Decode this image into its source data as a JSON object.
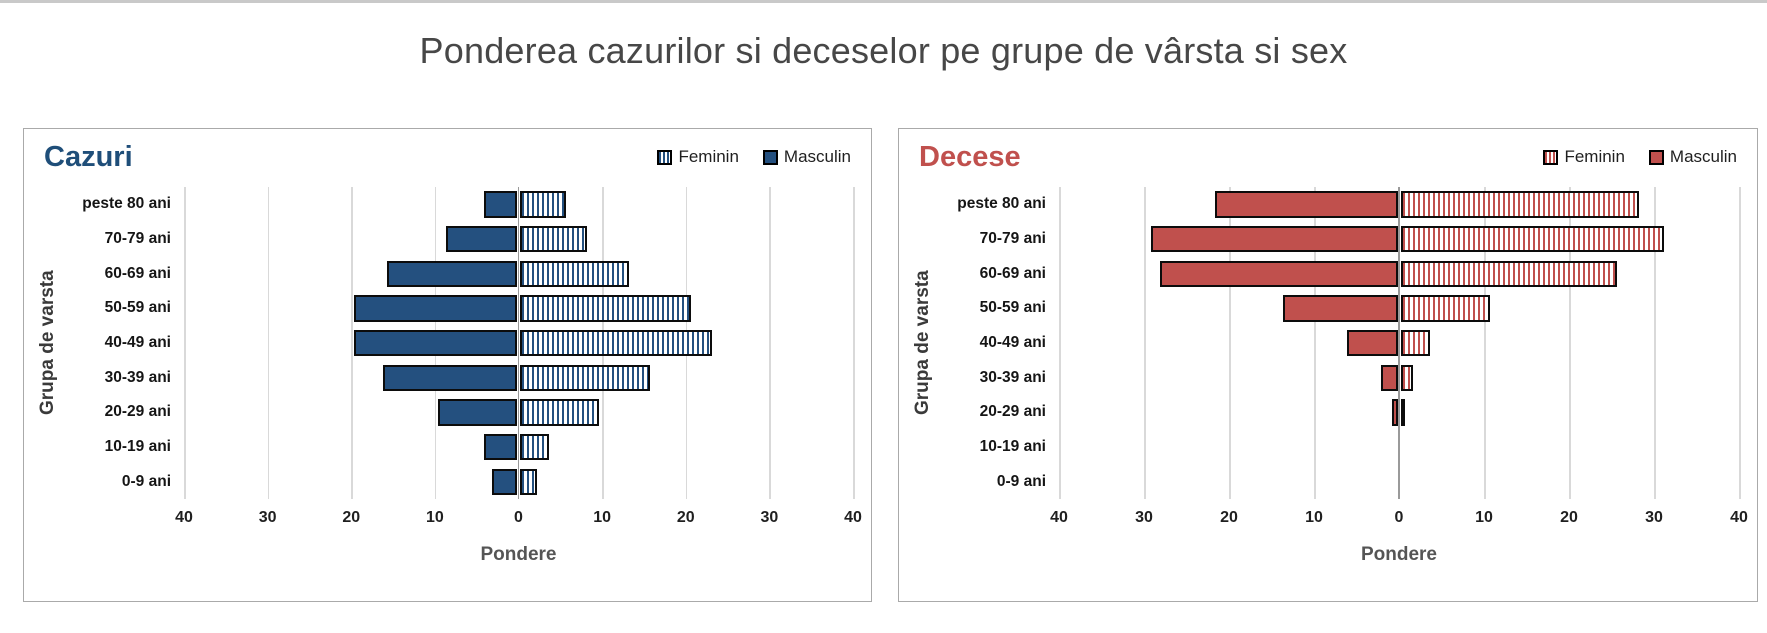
{
  "page": {
    "title": "Ponderea cazurilor si deceselor pe grupe de vârsta si sex"
  },
  "colors": {
    "cases_bar": "#24507F",
    "cases_title": "#1F4E79",
    "deaths_bar": "#C0504D",
    "deaths_title": "#C0504D",
    "gridline": "#D9D9D9",
    "center_axis": "#9A9A9A",
    "bar_outline": "#0C0C0C",
    "panel_border": "#AAAAAA"
  },
  "chart_data": [
    {
      "type": "bar",
      "subtype": "population-pyramid",
      "title": "Cazuri",
      "title_color": "#1F4E79",
      "color": "#24507F",
      "xlabel": "Pondere",
      "ylabel": "Grupa de varsta",
      "categories": [
        "peste 80 ani",
        "70-79 ani",
        "60-69 ani",
        "50-59 ani",
        "40-49 ani",
        "30-39 ani",
        "20-29 ani",
        "10-19 ani",
        "0-9 ani"
      ],
      "series": [
        {
          "name": "Masculin",
          "side": "left",
          "style": "solid",
          "values": [
            4,
            8.5,
            15.5,
            19.5,
            19.5,
            16,
            9.5,
            4,
            3
          ]
        },
        {
          "name": "Feminin",
          "side": "right",
          "style": "striped",
          "values": [
            5.5,
            8,
            13,
            20.5,
            23,
            15.5,
            9.5,
            3.5,
            2
          ]
        }
      ],
      "legend": [
        "Feminin",
        "Masculin"
      ],
      "legend_position": "top-right",
      "xlim": [
        -40,
        40
      ],
      "x_tick_labels": [
        "40",
        "30",
        "20",
        "10",
        "0",
        "10",
        "20",
        "30",
        "40"
      ],
      "grid": "vertical-only"
    },
    {
      "type": "bar",
      "subtype": "population-pyramid",
      "title": "Decese",
      "title_color": "#C0504D",
      "color": "#C0504D",
      "xlabel": "Pondere",
      "ylabel": "Grupa de varsta",
      "categories": [
        "peste 80 ani",
        "70-79 ani",
        "60-69 ani",
        "50-59 ani",
        "40-49 ani",
        "30-39 ani",
        "20-29 ani",
        "10-19 ani",
        "0-9 ani"
      ],
      "series": [
        {
          "name": "Masculin",
          "side": "left",
          "style": "solid",
          "values": [
            21.5,
            29,
            28,
            13.5,
            6,
            2,
            0.6,
            0,
            0
          ]
        },
        {
          "name": "Feminin",
          "side": "right",
          "style": "striped",
          "values": [
            28,
            31,
            25.5,
            10.5,
            3.5,
            1.5,
            0.5,
            0,
            0
          ]
        }
      ],
      "legend": [
        "Feminin",
        "Masculin"
      ],
      "legend_position": "top-right",
      "xlim": [
        -40,
        40
      ],
      "x_tick_labels": [
        "40",
        "30",
        "20",
        "10",
        "0",
        "10",
        "20",
        "30",
        "40"
      ],
      "grid": "vertical-only"
    }
  ]
}
